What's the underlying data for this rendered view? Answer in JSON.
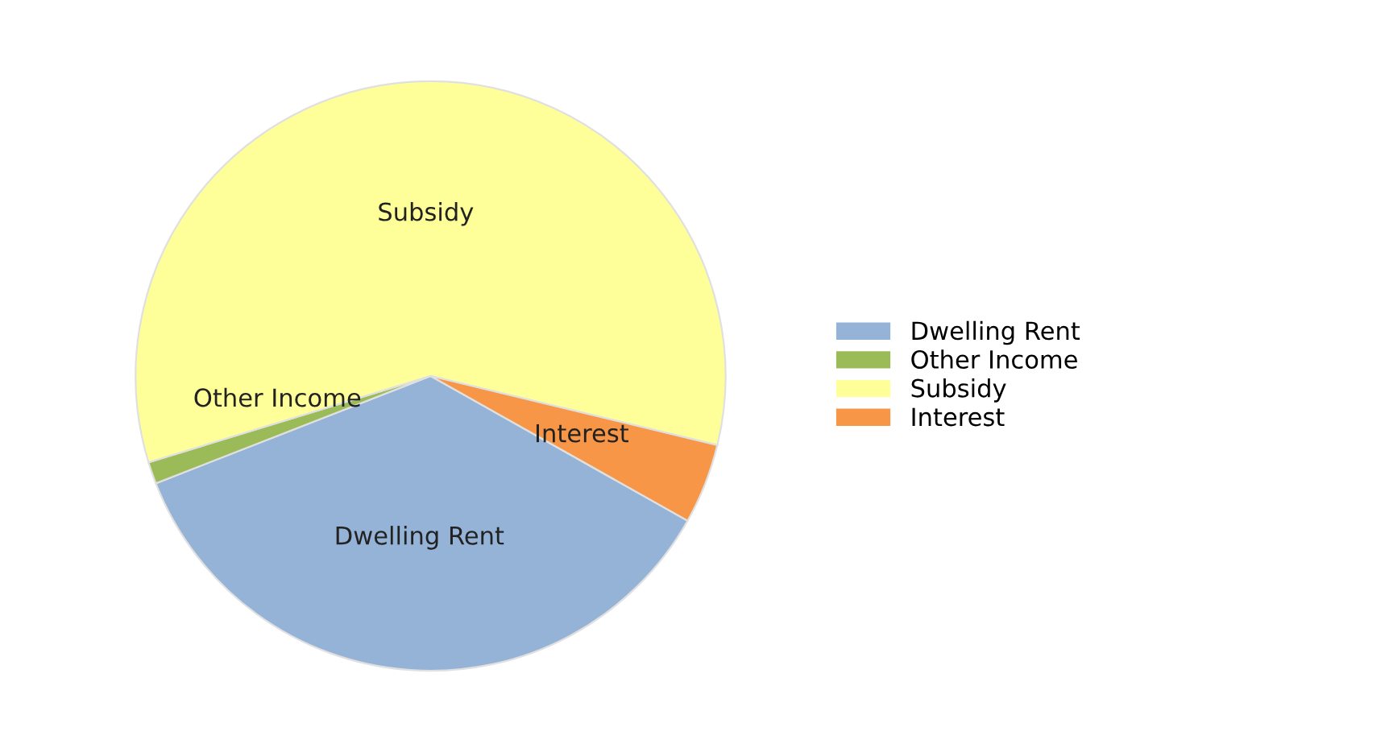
{
  "chart_data": {
    "type": "pie",
    "categories": [
      "Dwelling Rent",
      "Other Income",
      "Subsidy",
      "Interest"
    ],
    "values": [
      35.9,
      1.2,
      58.5,
      4.4
    ],
    "colors": [
      "#95b3d7",
      "#9bbb59",
      "#ffff99",
      "#f79646"
    ],
    "legend": "right"
  }
}
